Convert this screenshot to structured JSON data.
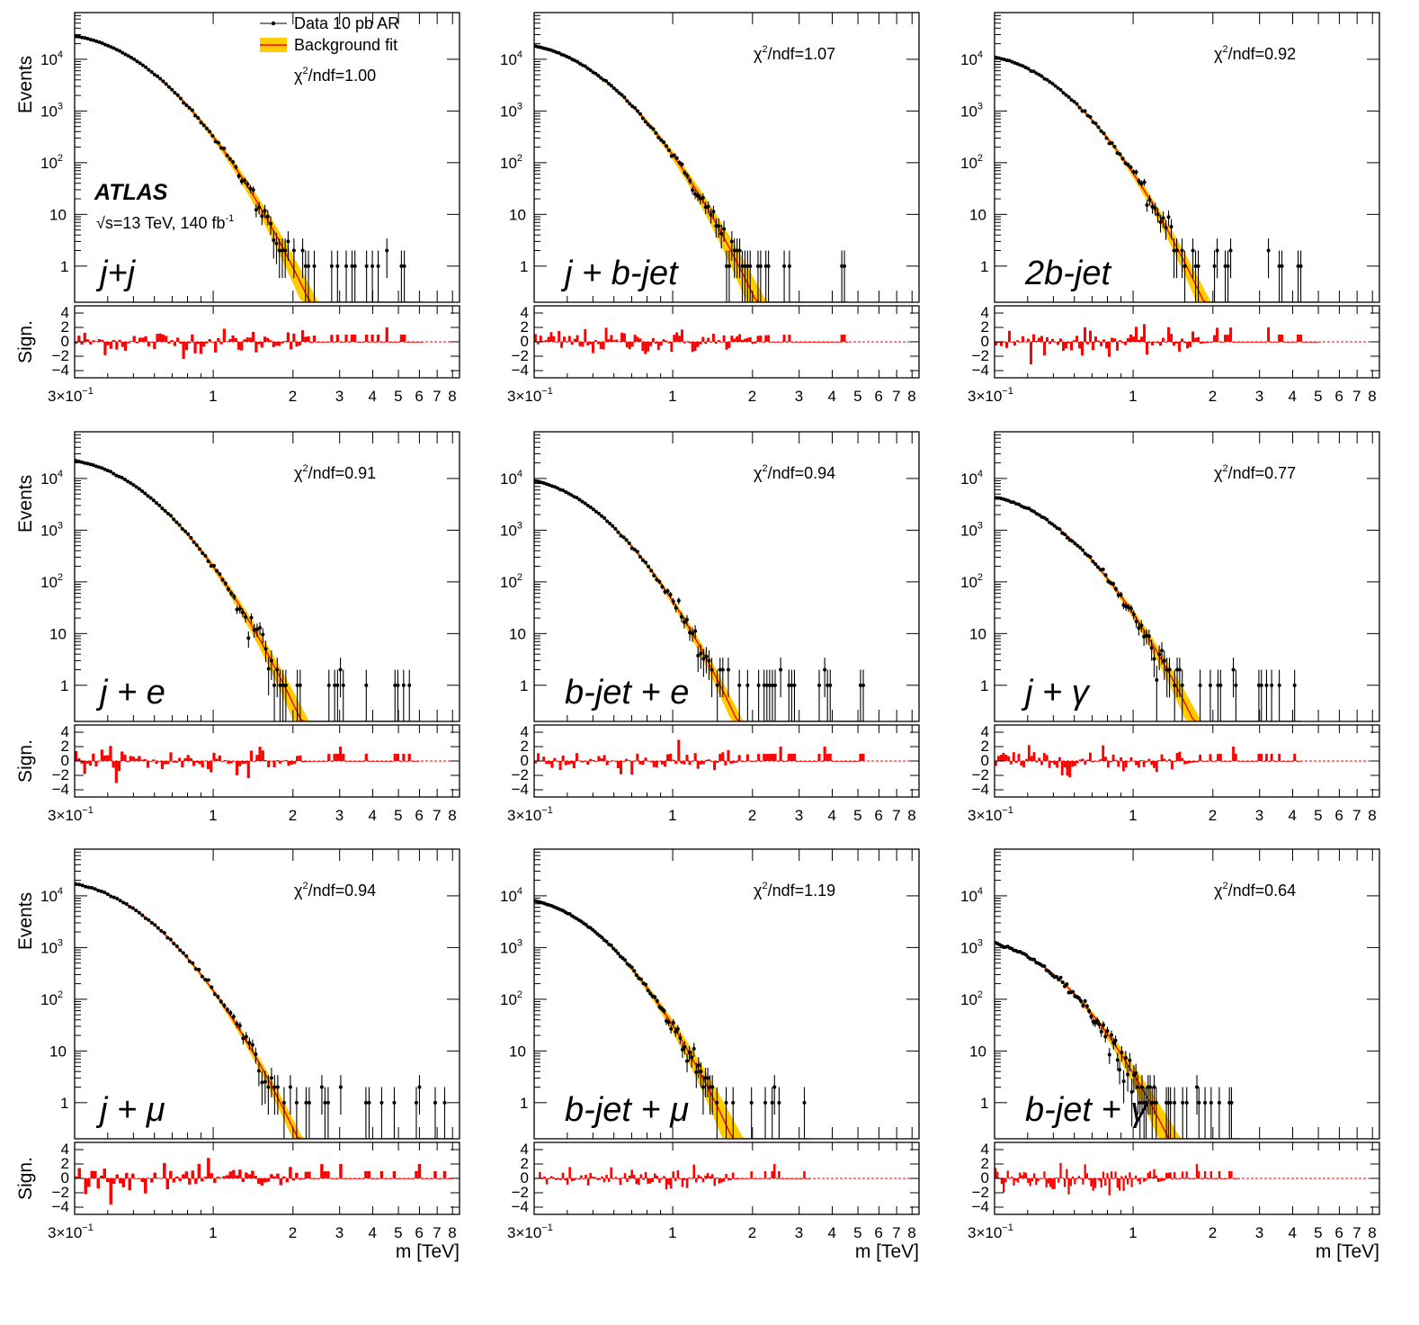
{
  "figure": {
    "y_label_main": "Events",
    "y_label_ratio": "Sign.",
    "x_label": "m [TeV]",
    "x_tick_labels": [
      "3×10",
      "1",
      "2",
      "3",
      "4",
      "5",
      "6",
      "7",
      "8"
    ],
    "x_first_exp": "−1",
    "y_tick_labels_main": [
      {
        "base": "10",
        "exp": "4"
      },
      {
        "base": "10",
        "exp": "3"
      },
      {
        "base": "10",
        "exp": "2"
      },
      {
        "base": "10",
        "exp": ""
      },
      {
        "base": "1",
        "exp": ""
      }
    ],
    "y_tick_labels_ratio": [
      "4",
      "2",
      "0",
      "−2",
      "−4"
    ],
    "legend": {
      "data": "Data 10 pb AR",
      "fit": "Background fit"
    },
    "atlas_label": "ATLAS",
    "energy_label_pre": "√s=13 TeV,  140 fb",
    "energy_label_exp": "-1",
    "colors": {
      "band": "#ffcc00",
      "fit": "#ff0000",
      "data": "#000000",
      "sig": "#ff0000"
    }
  },
  "chart_data": [
    {
      "type": "line",
      "channel": "j+j",
      "chi2_text": "χ²/ndf=1.00",
      "chi_base": "χ",
      "chi_exp": "2",
      "chi_rest": "/ndf=1.00",
      "label": "j+j",
      "start_events": 28000,
      "end_mass_TeV": 6.2,
      "slope": [
        2.6,
        0.9
      ],
      "xlim": [
        0.3,
        8.5
      ],
      "ylim": [
        0.2,
        80000
      ],
      "sig_range": [
        -5,
        5
      ]
    },
    {
      "type": "line",
      "channel": "j + b-jet",
      "chi_base": "χ",
      "chi_exp": "2",
      "chi_rest": "/ndf=1.07",
      "label": "j + b-jet",
      "start_events": 18000,
      "end_mass_TeV": 4.6,
      "slope": [
        2.7,
        1.15
      ],
      "xlim": [
        0.3,
        8.5
      ],
      "ylim": [
        0.2,
        80000
      ],
      "sig_range": [
        -5,
        5
      ]
    },
    {
      "type": "line",
      "channel": "2b-jet",
      "chi_base": "χ",
      "chi_exp": "2",
      "chi_rest": "/ndf=0.92",
      "label": "2b-jet",
      "start_events": 11000,
      "end_mass_TeV": 5.0,
      "slope": [
        2.9,
        1.2
      ],
      "xlim": [
        0.3,
        8.5
      ],
      "ylim": [
        0.2,
        80000
      ],
      "sig_range": [
        -5,
        5
      ]
    },
    {
      "type": "line",
      "channel": "j + e",
      "chi_base": "χ",
      "chi_exp": "2",
      "chi_rest": "/ndf=0.91",
      "label": "j + e",
      "start_events": 22000,
      "end_mass_TeV": 6.0,
      "slope": [
        2.7,
        1.0
      ],
      "xlim": [
        0.3,
        8.5
      ],
      "ylim": [
        0.2,
        80000
      ],
      "sig_range": [
        -5,
        5
      ]
    },
    {
      "type": "line",
      "channel": "b-jet + e",
      "chi_base": "χ",
      "chi_exp": "2",
      "chi_rest": "/ndf=0.94",
      "label": "b-jet + e",
      "start_events": 9000,
      "end_mass_TeV": 5.3,
      "slope": [
        3.0,
        1.25
      ],
      "xlim": [
        0.3,
        8.5
      ],
      "ylim": [
        0.2,
        80000
      ],
      "sig_range": [
        -5,
        5
      ]
    },
    {
      "type": "line",
      "channel": "j + γ",
      "chi_base": "χ",
      "chi_exp": "2",
      "chi_rest": "/ndf=0.77",
      "label": "j + γ",
      "start_events": 4300,
      "end_mass_TeV": 4.3,
      "slope": [
        2.9,
        1.2
      ],
      "xlim": [
        0.3,
        8.5
      ],
      "ylim": [
        0.2,
        80000
      ],
      "sig_range": [
        -5,
        5
      ]
    },
    {
      "type": "line",
      "channel": "j + μ",
      "chi_base": "χ",
      "chi_exp": "2",
      "chi_rest": "/ndf=0.94",
      "label": "j + μ",
      "start_events": 17000,
      "end_mass_TeV": 8.0,
      "slope": [
        2.7,
        1.05
      ],
      "xlim": [
        0.3,
        8.5
      ],
      "ylim": [
        0.2,
        80000
      ],
      "sig_range": [
        -5,
        5
      ]
    },
    {
      "type": "line",
      "channel": "b-jet + μ",
      "chi_base": "χ",
      "chi_exp": "2",
      "chi_rest": "/ndf=1.19",
      "label": "b-jet + μ",
      "start_events": 8000,
      "end_mass_TeV": 3.3,
      "slope": [
        3.1,
        1.3
      ],
      "xlim": [
        0.3,
        8.5
      ],
      "ylim": [
        0.2,
        80000
      ],
      "sig_range": [
        -5,
        5
      ]
    },
    {
      "type": "line",
      "channel": "b-jet + γ",
      "chi_base": "χ",
      "chi_exp": "2",
      "chi_rest": "/ndf=0.64",
      "label": "b-jet + γ",
      "start_events": 1200,
      "end_mass_TeV": 2.5,
      "slope": [
        3.2,
        1.4
      ],
      "xlim": [
        0.3,
        8.5
      ],
      "ylim": [
        0.2,
        80000
      ],
      "sig_range": [
        -5,
        5
      ]
    }
  ]
}
